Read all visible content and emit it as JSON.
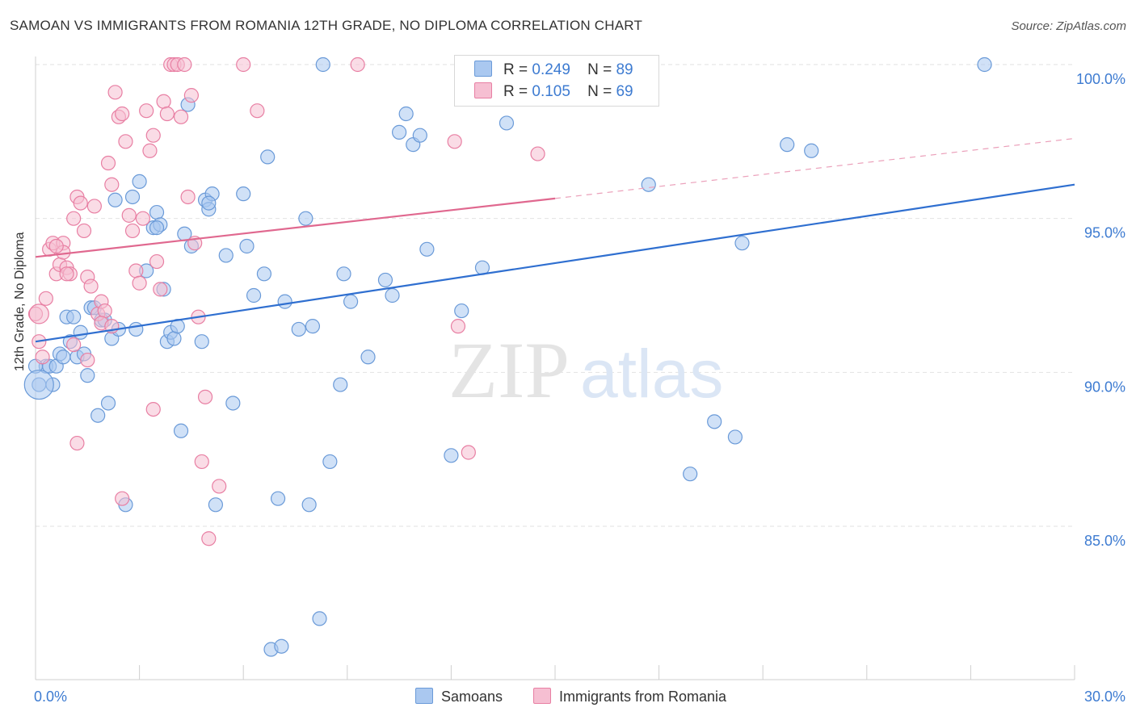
{
  "title": "SAMOAN VS IMMIGRANTS FROM ROMANIA 12TH GRADE, NO DIPLOMA CORRELATION CHART",
  "source": "Source: ZipAtlas.com",
  "watermark": {
    "zip": "ZIP",
    "atlas": "atlas"
  },
  "legend": {
    "r_label": "R =",
    "n_label": "N =",
    "rows": [
      {
        "r": "0.249",
        "n": "89",
        "color": "#aac8f0",
        "stroke": "#6a9ad8"
      },
      {
        "r": "0.105",
        "n": "69",
        "color": "#f6bfd2",
        "stroke": "#e87fa3"
      }
    ]
  },
  "bottom_legend": [
    {
      "label": "Samoans",
      "color": "#aac8f0",
      "stroke": "#6a9ad8"
    },
    {
      "label": "Immigrants from Romania",
      "color": "#f6bfd2",
      "stroke": "#e87fa3"
    }
  ],
  "chart_data": {
    "type": "scatter",
    "title": "SAMOAN VS IMMIGRANTS FROM ROMANIA 12TH GRADE, NO DIPLOMA CORRELATION CHART",
    "xlabel": "",
    "ylabel": "12th Grade, No Diploma",
    "xlim": [
      0,
      30
    ],
    "ylim": [
      80,
      100.5
    ],
    "x_tick_labels": [
      "0.0%",
      "30.0%"
    ],
    "y_ticks": [
      85,
      90,
      95,
      100
    ],
    "y_tick_labels": [
      "85.0%",
      "90.0%",
      "95.0%",
      "100.0%"
    ],
    "grid": true,
    "legend_position": "top-center",
    "series": [
      {
        "name": "Samoans",
        "color": "#6a9ad8",
        "fill": "#aac8f0",
        "trend": {
          "x": [
            0,
            30
          ],
          "y": [
            91.0,
            96.1
          ],
          "color": "#2f6fd0"
        },
        "points": [
          [
            0.1,
            89.6
          ],
          [
            0.3,
            90.2
          ],
          [
            0.4,
            90.2
          ],
          [
            0.5,
            89.6
          ],
          [
            0.6,
            90.2
          ],
          [
            0.7,
            90.6
          ],
          [
            0.8,
            90.5
          ],
          [
            0.9,
            91.8
          ],
          [
            1.0,
            91.0
          ],
          [
            1.1,
            91.8
          ],
          [
            1.2,
            90.5
          ],
          [
            1.3,
            91.3
          ],
          [
            1.5,
            89.9
          ],
          [
            1.6,
            92.1
          ],
          [
            1.7,
            92.1
          ],
          [
            1.8,
            88.6
          ],
          [
            1.9,
            91.7
          ],
          [
            2.1,
            89.0
          ],
          [
            2.2,
            91.1
          ],
          [
            2.3,
            95.6
          ],
          [
            2.4,
            91.4
          ],
          [
            2.6,
            85.7
          ],
          [
            2.8,
            95.7
          ],
          [
            2.9,
            91.4
          ],
          [
            3.0,
            96.2
          ],
          [
            3.2,
            93.3
          ],
          [
            3.4,
            94.7
          ],
          [
            3.5,
            95.2
          ],
          [
            3.6,
            94.8
          ],
          [
            3.7,
            92.7
          ],
          [
            3.8,
            91.0
          ],
          [
            3.9,
            91.3
          ],
          [
            4.0,
            91.1
          ],
          [
            4.1,
            91.5
          ],
          [
            4.2,
            88.1
          ],
          [
            4.3,
            94.5
          ],
          [
            4.4,
            98.7
          ],
          [
            4.5,
            94.1
          ],
          [
            4.8,
            91.0
          ],
          [
            4.9,
            95.6
          ],
          [
            5.0,
            95.3
          ],
          [
            5.1,
            95.8
          ],
          [
            5.2,
            85.7
          ],
          [
            5.5,
            93.8
          ],
          [
            5.7,
            89.0
          ],
          [
            6.0,
            95.8
          ],
          [
            6.1,
            94.1
          ],
          [
            6.3,
            92.5
          ],
          [
            6.6,
            93.2
          ],
          [
            6.7,
            97.0
          ],
          [
            6.8,
            81.0
          ],
          [
            7.0,
            85.9
          ],
          [
            7.1,
            81.1
          ],
          [
            7.2,
            92.3
          ],
          [
            7.6,
            91.4
          ],
          [
            7.8,
            95.0
          ],
          [
            7.9,
            85.7
          ],
          [
            8.0,
            91.5
          ],
          [
            8.2,
            82.0
          ],
          [
            8.3,
            100.0
          ],
          [
            8.5,
            87.1
          ],
          [
            8.8,
            89.6
          ],
          [
            8.9,
            93.2
          ],
          [
            9.1,
            92.3
          ],
          [
            9.6,
            90.5
          ],
          [
            10.1,
            93.0
          ],
          [
            10.3,
            92.5
          ],
          [
            10.5,
            97.8
          ],
          [
            10.7,
            98.4
          ],
          [
            10.9,
            97.4
          ],
          [
            11.1,
            97.7
          ],
          [
            11.3,
            94.0
          ],
          [
            12.0,
            87.3
          ],
          [
            12.3,
            92.0
          ],
          [
            12.9,
            93.4
          ],
          [
            13.6,
            98.1
          ],
          [
            17.7,
            96.1
          ],
          [
            18.9,
            86.7
          ],
          [
            19.6,
            88.4
          ],
          [
            20.2,
            87.9
          ],
          [
            20.4,
            94.2
          ],
          [
            21.7,
            97.4
          ],
          [
            22.4,
            97.2
          ],
          [
            27.4,
            100.0
          ],
          [
            0.0,
            90.2
          ],
          [
            2.0,
            91.7
          ],
          [
            3.5,
            94.7
          ],
          [
            5.0,
            95.5
          ],
          [
            1.4,
            90.6
          ]
        ]
      },
      {
        "name": "Immigrants from Romania",
        "color": "#e87fa3",
        "fill": "#f6bfd2",
        "trend": {
          "x": [
            0,
            15
          ],
          "y": [
            93.75,
            95.65
          ],
          "color": "#e0688f"
        },
        "trend_extension": {
          "x": [
            15,
            30
          ],
          "y": [
            95.65,
            97.6
          ]
        },
        "points": [
          [
            0.0,
            91.9
          ],
          [
            0.1,
            91.0
          ],
          [
            0.2,
            90.5
          ],
          [
            0.3,
            92.4
          ],
          [
            0.4,
            94.0
          ],
          [
            0.5,
            94.2
          ],
          [
            0.6,
            93.2
          ],
          [
            0.7,
            93.5
          ],
          [
            0.8,
            94.2
          ],
          [
            0.9,
            93.4
          ],
          [
            1.0,
            93.2
          ],
          [
            1.1,
            95.0
          ],
          [
            1.2,
            95.7
          ],
          [
            1.3,
            95.5
          ],
          [
            1.4,
            94.6
          ],
          [
            1.5,
            93.1
          ],
          [
            1.6,
            92.8
          ],
          [
            1.7,
            95.4
          ],
          [
            1.8,
            91.9
          ],
          [
            1.9,
            92.3
          ],
          [
            2.0,
            92.0
          ],
          [
            2.1,
            96.8
          ],
          [
            2.2,
            96.1
          ],
          [
            2.3,
            99.1
          ],
          [
            2.4,
            98.3
          ],
          [
            2.5,
            98.4
          ],
          [
            2.6,
            97.5
          ],
          [
            2.7,
            95.1
          ],
          [
            2.8,
            94.6
          ],
          [
            2.9,
            93.3
          ],
          [
            3.0,
            92.9
          ],
          [
            3.1,
            95.0
          ],
          [
            3.2,
            98.5
          ],
          [
            3.3,
            97.2
          ],
          [
            3.4,
            97.7
          ],
          [
            3.5,
            93.6
          ],
          [
            3.6,
            92.7
          ],
          [
            3.7,
            98.8
          ],
          [
            3.8,
            98.4
          ],
          [
            3.9,
            100.0
          ],
          [
            4.0,
            100.0
          ],
          [
            4.1,
            100.0
          ],
          [
            4.2,
            98.3
          ],
          [
            4.3,
            100.0
          ],
          [
            4.4,
            95.7
          ],
          [
            4.5,
            99.0
          ],
          [
            4.6,
            94.2
          ],
          [
            4.7,
            91.8
          ],
          [
            4.8,
            87.1
          ],
          [
            4.9,
            89.2
          ],
          [
            5.0,
            84.6
          ],
          [
            5.3,
            86.3
          ],
          [
            6.0,
            100.0
          ],
          [
            6.4,
            98.5
          ],
          [
            9.3,
            100.0
          ],
          [
            12.1,
            97.5
          ],
          [
            12.2,
            91.5
          ],
          [
            12.5,
            87.4
          ],
          [
            14.5,
            97.1
          ],
          [
            1.2,
            87.7
          ],
          [
            2.5,
            85.9
          ],
          [
            3.4,
            88.8
          ],
          [
            0.8,
            93.9
          ],
          [
            1.1,
            90.9
          ],
          [
            1.5,
            90.4
          ],
          [
            1.9,
            91.6
          ],
          [
            2.2,
            91.5
          ],
          [
            0.6,
            94.1
          ],
          [
            0.9,
            93.2
          ]
        ]
      }
    ]
  }
}
